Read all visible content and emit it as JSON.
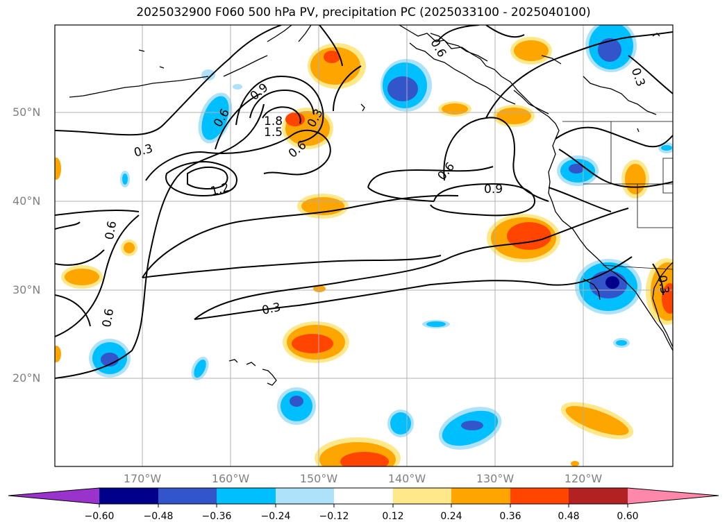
{
  "title": "2025032900 F060 500 hPa PV, precipitation PC (2025033100 - 2025040100)",
  "lat_labels": [
    "50°N",
    "40°N",
    "30°N",
    "20°N"
  ],
  "lon_labels": [
    "170°W",
    "160°W",
    "150°W",
    "140°W",
    "130°W",
    "120°W"
  ],
  "colorbar": {
    "ticks": [
      "−0.60",
      "−0.48",
      "−0.36",
      "−0.24",
      "−0.12",
      "0.12",
      "0.24",
      "0.36",
      "0.48",
      "0.60"
    ],
    "colors": [
      "#9933cc",
      "#00008b",
      "#3355cc",
      "#00bfff",
      "#aee2fb",
      "#ffffff",
      "#ffe88a",
      "#ffa500",
      "#ff4500",
      "#b22222",
      "#ff88aa"
    ]
  },
  "contour_labels": [
    "0.3",
    "0.6",
    "0.9",
    "1.2",
    "1.5",
    "1.8",
    "0.6",
    "0.9",
    "0.6",
    "0.6",
    "0.6",
    "0.3",
    "0.3",
    "0.3",
    "0.6",
    "0.3"
  ]
}
